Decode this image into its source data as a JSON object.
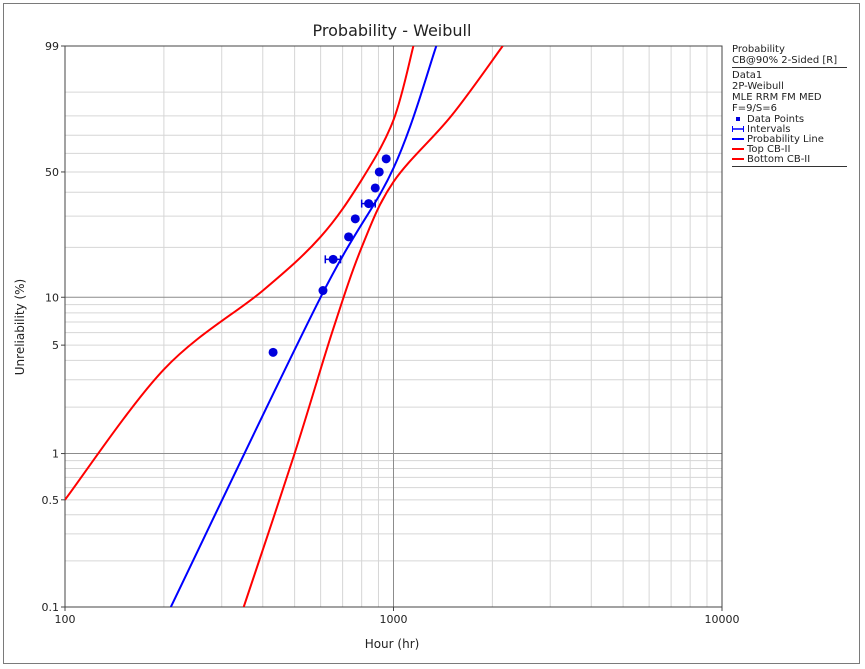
{
  "chart_data": {
    "type": "scatter",
    "title": "Probability - Weibull",
    "xlabel": "Hour (hr)",
    "ylabel": "Unreliability (%)",
    "x_scale": "log",
    "y_scale": "weibull",
    "xlim": [
      100,
      10000
    ],
    "ylim": [
      0.1,
      99
    ],
    "x_ticks": [
      100,
      1000,
      10000
    ],
    "x_tick_labels": [
      "100",
      "1000",
      "10000"
    ],
    "y_ticks": [
      0.1,
      0.5,
      1,
      5,
      10,
      50,
      99
    ],
    "y_tick_labels": [
      "0.1",
      "0.5",
      "1",
      "5",
      "10",
      "50",
      "99"
    ],
    "grid": true,
    "legend_position": "right",
    "colors": {
      "points": "#0000dd",
      "probability_line": "#0000ff",
      "confidence": "#ff0000",
      "grid_minor": "#d6d6d6",
      "grid_major": "#8c8c8c"
    },
    "series": [
      {
        "name": "Data Points",
        "kind": "points",
        "points": [
          {
            "x": 430,
            "y": 4.5
          },
          {
            "x": 610,
            "y": 11
          },
          {
            "x": 655,
            "y": 17
          },
          {
            "x": 730,
            "y": 23
          },
          {
            "x": 765,
            "y": 29
          },
          {
            "x": 840,
            "y": 35
          },
          {
            "x": 880,
            "y": 42
          },
          {
            "x": 905,
            "y": 50
          },
          {
            "x": 950,
            "y": 57
          }
        ]
      },
      {
        "name": "Intervals",
        "kind": "intervals",
        "intervals": [
          {
            "x_low": 620,
            "x_high": 690,
            "y": 17
          },
          {
            "x_low": 800,
            "x_high": 880,
            "y": 35
          }
        ]
      },
      {
        "name": "Probability Line",
        "kind": "line",
        "points": [
          {
            "x": 210,
            "y": 0.1
          },
          {
            "x": 600,
            "y": 10
          },
          {
            "x": 1000,
            "y": 52
          },
          {
            "x": 1350,
            "y": 99
          }
        ]
      },
      {
        "name": "Top CB-II",
        "kind": "line",
        "points": [
          {
            "x": 100,
            "y": 0.5
          },
          {
            "x": 200,
            "y": 3.5
          },
          {
            "x": 400,
            "y": 11
          },
          {
            "x": 600,
            "y": 23
          },
          {
            "x": 800,
            "y": 46
          },
          {
            "x": 1000,
            "y": 78
          },
          {
            "x": 1150,
            "y": 99
          }
        ]
      },
      {
        "name": "Bottom CB-II",
        "kind": "line",
        "points": [
          {
            "x": 350,
            "y": 0.1
          },
          {
            "x": 500,
            "y": 1
          },
          {
            "x": 650,
            "y": 6
          },
          {
            "x": 800,
            "y": 20
          },
          {
            "x": 1000,
            "y": 45
          },
          {
            "x": 1500,
            "y": 80
          },
          {
            "x": 2150,
            "y": 99
          }
        ]
      }
    ]
  },
  "legend": {
    "header": "Probability",
    "subheader": "CB@90% 2-Sided [R]",
    "lines": [
      "Data1",
      "2P-Weibull",
      "MLE RRM FM MED",
      "F=9/S=6"
    ],
    "entries": [
      {
        "label": "Data Points",
        "symbol": "dot",
        "color": "#0000dd"
      },
      {
        "label": "Intervals",
        "symbol": "interval",
        "color": "#0000ff"
      },
      {
        "label": "Probability Line",
        "symbol": "line",
        "color": "#0000ff"
      },
      {
        "label": "Top CB-II",
        "symbol": "line",
        "color": "#ff0000"
      },
      {
        "label": "Bottom CB-II",
        "symbol": "line",
        "color": "#ff0000"
      }
    ]
  }
}
